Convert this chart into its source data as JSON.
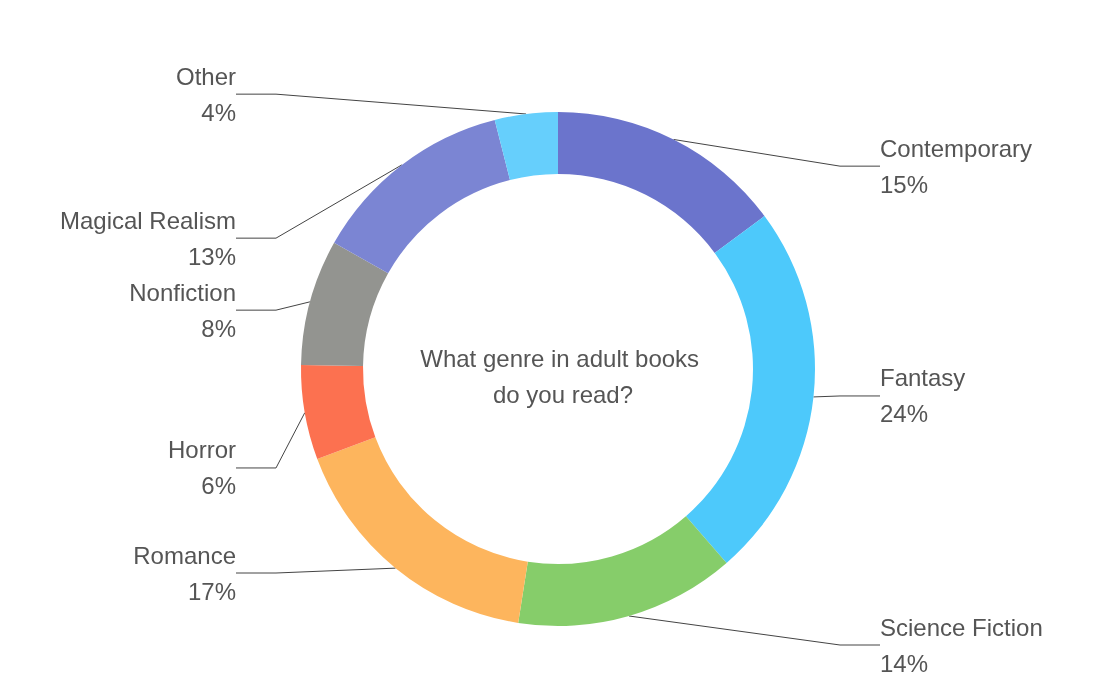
{
  "chart_data": {
    "type": "donut",
    "title": "What genre in adult books do you read?",
    "categories": [
      "Contemporary",
      "Fantasy",
      "Science Fiction",
      "Romance",
      "Horror",
      "Nonfiction",
      "Magical Realism",
      "Other"
    ],
    "values": [
      15,
      24,
      14,
      17,
      6,
      8,
      13,
      4
    ],
    "value_labels": [
      "15%",
      "24%",
      "14%",
      "17%",
      "6%",
      "8%",
      "13%",
      "4%"
    ],
    "colors": [
      "#6b74cc",
      "#4dc9fb",
      "#86cd6a",
      "#fdb55d",
      "#fc7150",
      "#939490",
      "#7b85d3",
      "#66cffc"
    ]
  }
}
